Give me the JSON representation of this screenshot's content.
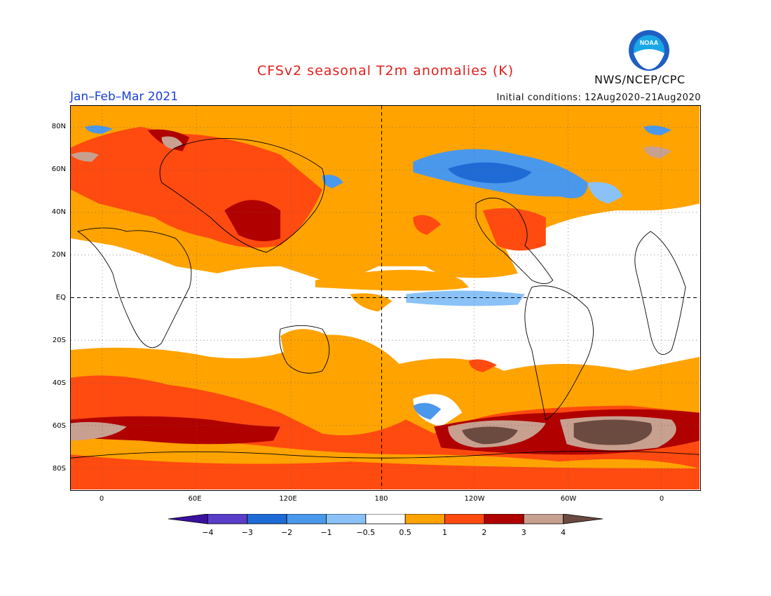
{
  "header": {
    "title": "CFSv2 seasonal T2m anomalies (K)",
    "season": "Jan–Feb–Mar 2021",
    "initial_conditions": "Initial conditions: 12Aug2020–21Aug2020",
    "agency": "NWS/NCEP/CPC",
    "logo_text": "NOAA"
  },
  "map": {
    "projection": "equirectangular",
    "lon_range": "20W to 20E (wrapped, ~400°)",
    "lat_range": "90S to 90N",
    "lat_labels": [
      "80N",
      "60N",
      "40N",
      "20N",
      "EQ",
      "20S",
      "40S",
      "60S",
      "80S"
    ],
    "lon_labels": [
      "0",
      "60E",
      "120E",
      "180",
      "120W",
      "60W",
      "0"
    ],
    "grid": "dotted",
    "reference_lines": [
      "EQ dashed",
      "180 dashed"
    ]
  },
  "legend": {
    "units": "K",
    "tick_labels": [
      "−4",
      "−3",
      "−2",
      "−1",
      "−0.5",
      "0.5",
      "1",
      "2",
      "3",
      "4"
    ],
    "colors": [
      "#3a10a0",
      "#5a3dc8",
      "#1e6bd6",
      "#4a98ec",
      "#8ac2f7",
      "#ffffff",
      "#ffa300",
      "#ff4a10",
      "#b00000",
      "#c8a090",
      "#6b4a40"
    ]
  }
}
